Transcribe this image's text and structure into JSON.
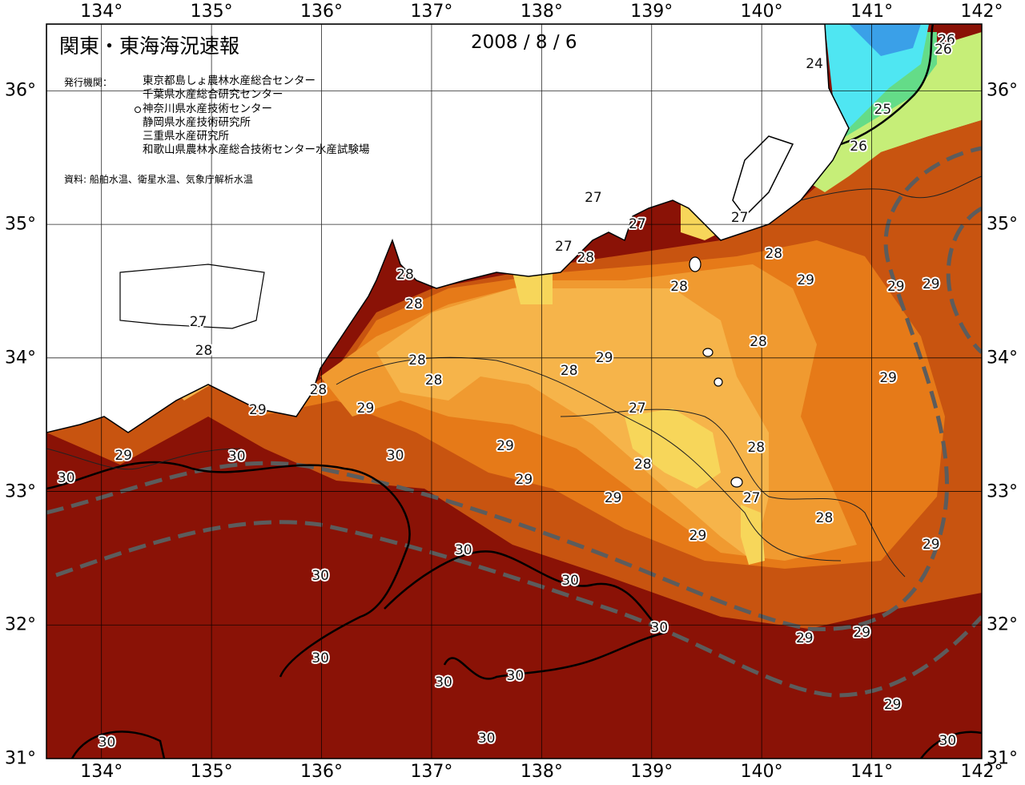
{
  "title": "関東・東海海況速報",
  "date": "2008 / 8 / 6",
  "issuer_label": "発行機関：",
  "issuers": [
    "東京都島しょ農林水産総合センター",
    "千葉県水産総合研究センター",
    "神奈川県水産技術センター",
    "静岡県水産技術研究所",
    "三重県水産研究所",
    "和歌山県農林水産総合技術センター水産試験場"
  ],
  "source": "資料: 船舶水温、衛星水温、気象庁解析水温",
  "longitudes": [
    "134°",
    "135°",
    "136°",
    "137°",
    "138°",
    "139°",
    "140°",
    "141°",
    "142°"
  ],
  "latitudes": [
    "36°",
    "35°",
    "34°",
    "33°",
    "32°",
    "31°"
  ],
  "extent": {
    "lon_min": 133.5,
    "lon_max": 142.0,
    "lat_min": 31.0,
    "lat_max": 36.5
  },
  "temperature_colors": {
    "lt_24": "#3aa0e8",
    "24_25": "#4fe6f2",
    "25_26": "#64dc88",
    "26_27": "#c6ee78",
    "27_28": "#f7d65a",
    "28_29a": "#f6b44a",
    "28_29b": "#f09a30",
    "29_30a": "#e67a18",
    "29_30b": "#c85410",
    "gt_30": "#8a1206"
  },
  "isotherm_labels": [
    {
      "text": "24",
      "lon": 140.48,
      "lat": 36.2,
      "halo": false
    },
    {
      "text": "26",
      "lon": 141.68,
      "lat": 36.38
    },
    {
      "text": "26",
      "lon": 141.65,
      "lat": 36.31
    },
    {
      "text": "25",
      "lon": 141.1,
      "lat": 35.86
    },
    {
      "text": "26",
      "lon": 140.88,
      "lat": 35.58
    },
    {
      "text": "27",
      "lon": 138.47,
      "lat": 35.2,
      "halo": false
    },
    {
      "text": "27",
      "lon": 138.2,
      "lat": 34.83
    },
    {
      "text": "27",
      "lon": 138.87,
      "lat": 35.0
    },
    {
      "text": "27",
      "lon": 139.8,
      "lat": 35.05
    },
    {
      "text": "28",
      "lon": 138.4,
      "lat": 34.75
    },
    {
      "text": "28",
      "lon": 136.76,
      "lat": 34.62
    },
    {
      "text": "28",
      "lon": 136.84,
      "lat": 34.4
    },
    {
      "text": "28",
      "lon": 140.11,
      "lat": 34.78
    },
    {
      "text": "29",
      "lon": 140.4,
      "lat": 34.58
    },
    {
      "text": "29",
      "lon": 141.54,
      "lat": 34.55
    },
    {
      "text": "29",
      "lon": 141.22,
      "lat": 34.53
    },
    {
      "text": "28",
      "lon": 139.25,
      "lat": 34.53
    },
    {
      "text": "27",
      "lon": 134.88,
      "lat": 34.27
    },
    {
      "text": "28",
      "lon": 134.93,
      "lat": 34.05
    },
    {
      "text": "28",
      "lon": 136.87,
      "lat": 33.98
    },
    {
      "text": "28",
      "lon": 139.97,
      "lat": 34.12
    },
    {
      "text": "29",
      "lon": 138.57,
      "lat": 34.0
    },
    {
      "text": "28",
      "lon": 138.25,
      "lat": 33.9
    },
    {
      "text": "28",
      "lon": 137.02,
      "lat": 33.83
    },
    {
      "text": "29",
      "lon": 141.15,
      "lat": 33.85
    },
    {
      "text": "28",
      "lon": 135.97,
      "lat": 33.76
    },
    {
      "text": "29",
      "lon": 135.42,
      "lat": 33.61
    },
    {
      "text": "29",
      "lon": 136.4,
      "lat": 33.62
    },
    {
      "text": "27",
      "lon": 138.87,
      "lat": 33.62
    },
    {
      "text": "29",
      "lon": 137.67,
      "lat": 33.34
    },
    {
      "text": "28",
      "lon": 139.95,
      "lat": 33.33
    },
    {
      "text": "29",
      "lon": 134.2,
      "lat": 33.27
    },
    {
      "text": "30",
      "lon": 135.23,
      "lat": 33.26
    },
    {
      "text": "30",
      "lon": 136.67,
      "lat": 33.27
    },
    {
      "text": "28",
      "lon": 138.92,
      "lat": 33.2
    },
    {
      "text": "30",
      "lon": 133.68,
      "lat": 33.1
    },
    {
      "text": "29",
      "lon": 137.84,
      "lat": 33.09
    },
    {
      "text": "29",
      "lon": 138.65,
      "lat": 32.95
    },
    {
      "text": "27",
      "lon": 139.91,
      "lat": 32.95
    },
    {
      "text": "28",
      "lon": 140.57,
      "lat": 32.8
    },
    {
      "text": "29",
      "lon": 139.42,
      "lat": 32.67
    },
    {
      "text": "29",
      "lon": 141.54,
      "lat": 32.6
    },
    {
      "text": "30",
      "lon": 137.29,
      "lat": 32.56
    },
    {
      "text": "30",
      "lon": 135.99,
      "lat": 32.37
    },
    {
      "text": "30",
      "lon": 138.26,
      "lat": 32.33
    },
    {
      "text": "30",
      "lon": 139.07,
      "lat": 31.98
    },
    {
      "text": "29",
      "lon": 140.39,
      "lat": 31.9
    },
    {
      "text": "29",
      "lon": 140.91,
      "lat": 31.94
    },
    {
      "text": "30",
      "lon": 135.99,
      "lat": 31.75
    },
    {
      "text": "30",
      "lon": 137.76,
      "lat": 31.62
    },
    {
      "text": "30",
      "lon": 137.11,
      "lat": 31.57
    },
    {
      "text": "29",
      "lon": 141.19,
      "lat": 31.4
    },
    {
      "text": "30",
      "lon": 137.5,
      "lat": 31.15
    },
    {
      "text": "30",
      "lon": 134.05,
      "lat": 31.12
    },
    {
      "text": "30",
      "lon": 141.69,
      "lat": 31.13
    }
  ]
}
